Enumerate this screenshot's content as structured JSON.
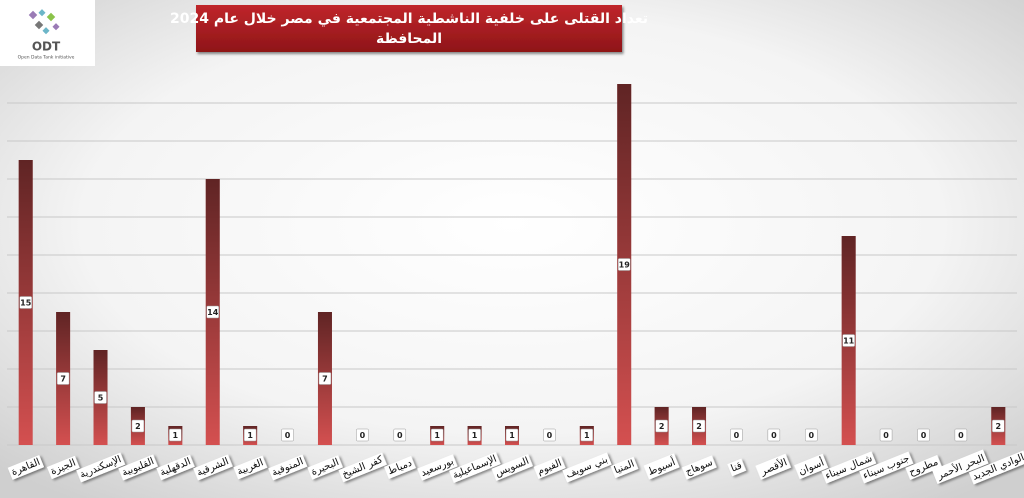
{
  "logo": {
    "name": "ODT",
    "tagline": "Open Data Tank initiative"
  },
  "chart_data": {
    "type": "bar",
    "title": "تعداد القتلى على خلفية الناشطية المجتمعية في مصر خلال عام 2024",
    "subtitle": "المحافظة",
    "categories": [
      "القاهرة",
      "الجيزة",
      "الإسكندرية",
      "القليوبية",
      "الدقهلية",
      "الشرقية",
      "الغربية",
      "المنوفية",
      "البحيرة",
      "كفر الشيخ",
      "دمياط",
      "بورسعيد",
      "الإسماعيلية",
      "السويس",
      "الفيوم",
      "بني سويف",
      "المنيا",
      "أسيوط",
      "سوهاج",
      "قنا",
      "الأقصر",
      "أسوان",
      "شمال سيناء",
      "جنوب سيناء",
      "مطروح",
      "البحر الأحمر",
      "الوادي الجديد"
    ],
    "values": [
      15,
      7,
      5,
      2,
      1,
      14,
      1,
      0,
      7,
      0,
      0,
      1,
      1,
      1,
      0,
      1,
      19,
      2,
      2,
      0,
      0,
      0,
      11,
      0,
      0,
      0,
      2
    ],
    "color": "#d45050",
    "ylim": [
      0,
      20
    ],
    "yticks": [
      0,
      2,
      4,
      6,
      8,
      10,
      12,
      14,
      16,
      18
    ],
    "grid": true
  }
}
